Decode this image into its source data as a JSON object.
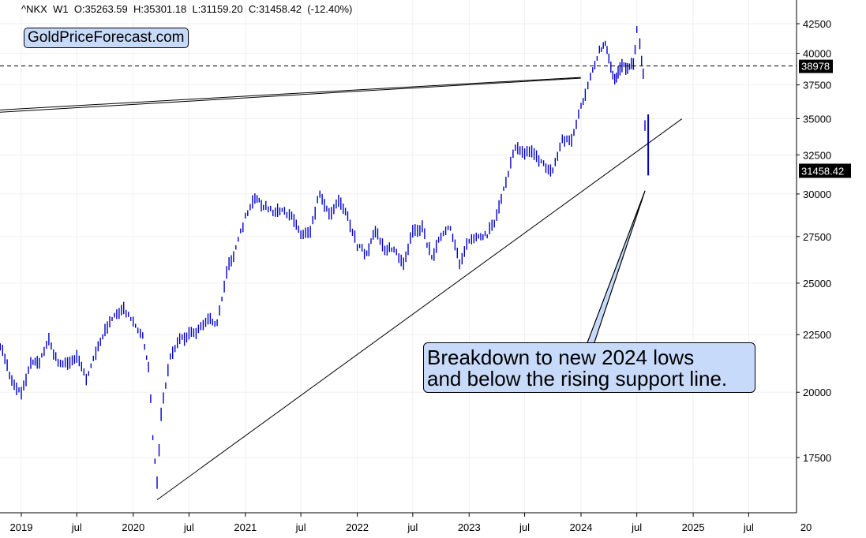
{
  "header": {
    "symbol": "^NKX",
    "interval": "W1",
    "open": "O:35263.59",
    "high": "H:35301.18",
    "low": "L:31159.20",
    "close": "C:31458.42",
    "change": "(-12.40%)"
  },
  "logo_text": "GoldPriceForecast.com",
  "callout": {
    "line1": "Breakdown to new 2024 lows",
    "line2": "and below the rising support line."
  },
  "colors": {
    "bars": "#0000cc",
    "callout_bg": "#c8daf9",
    "price_label_bg": "#000000",
    "price_label_text": "#ffffff"
  },
  "chart_data": {
    "type": "line",
    "title": "",
    "series": [
      {
        "x": [
          "2018-10-01",
          "2018-11-01",
          "2018-12-01",
          "2019-01-01",
          "2019-02-01",
          "2019-03-01",
          "2019-04-01",
          "2019-05-01",
          "2019-06-01",
          "2019-07-01",
          "2019-08-01",
          "2019-09-01",
          "2019-10-01",
          "2019-11-01",
          "2019-12-01",
          "2020-01-01",
          "2020-02-01",
          "2020-02-20",
          "2020-03-05",
          "2020-03-19",
          "2020-04-01",
          "2020-05-01",
          "2020-06-01",
          "2020-07-01",
          "2020-08-01",
          "2020-09-01",
          "2020-10-01",
          "2020-11-01",
          "2020-12-01",
          "2021-01-01",
          "2021-02-01",
          "2021-03-01",
          "2021-04-01",
          "2021-05-01",
          "2021-06-01",
          "2021-07-01",
          "2021-08-01",
          "2021-09-01",
          "2021-10-01",
          "2021-11-01",
          "2021-12-01",
          "2022-01-01",
          "2022-02-01",
          "2022-03-01",
          "2022-04-01",
          "2022-05-01",
          "2022-06-01",
          "2022-07-01",
          "2022-08-01",
          "2022-09-01",
          "2022-10-01",
          "2022-11-01",
          "2022-12-01",
          "2023-01-01",
          "2023-02-01",
          "2023-03-01",
          "2023-04-01",
          "2023-05-01",
          "2023-06-01",
          "2023-07-01",
          "2023-08-01",
          "2023-09-01",
          "2023-10-01",
          "2023-11-01",
          "2023-12-01",
          "2024-01-01",
          "2024-01-15",
          "2024-02-01",
          "2024-02-15",
          "2024-03-01",
          "2024-03-20",
          "2024-04-01",
          "2024-04-20",
          "2024-05-01",
          "2024-05-20",
          "2024-06-01",
          "2024-06-20",
          "2024-07-01",
          "2024-07-11",
          "2024-07-22",
          "2024-08-02"
        ],
        "values": [
          22600,
          21800,
          20400,
          20000,
          21200,
          21300,
          22200,
          21200,
          21200,
          21500,
          20600,
          21600,
          22800,
          23300,
          23700,
          23200,
          22400,
          21100,
          18300,
          16550,
          19200,
          21500,
          22300,
          22500,
          22700,
          23200,
          23000,
          25600,
          26800,
          28600,
          29800,
          29300,
          28900,
          28900,
          28800,
          27600,
          27900,
          30100,
          28700,
          29600,
          28600,
          27000,
          26500,
          27800,
          26800,
          26800,
          25900,
          27800,
          28000,
          26300,
          27500,
          28000,
          26100,
          27300,
          27400,
          27600,
          28600,
          30800,
          33100,
          32700,
          32600,
          31800,
          31500,
          33500,
          33500,
          35800,
          36800,
          38000,
          39000,
          40300,
          40700,
          39600,
          37800,
          38500,
          39000,
          38800,
          39200,
          41800,
          40800,
          38200,
          31458
        ]
      }
    ],
    "lines": [
      {
        "name": "support",
        "x": [
          "2020-03-19",
          "2024-11-25"
        ],
        "y": [
          16050,
          34980
        ]
      },
      {
        "name": "resistance",
        "x": [
          "2018-10-01",
          "2023-12-31"
        ],
        "y": [
          35600,
          38080
        ]
      }
    ],
    "horizontal_line": 38978,
    "last_price": 31458.42,
    "last_price_label": "31458.42",
    "horizontal_line_label": "38978",
    "ylim": [
      15500,
      43500
    ],
    "yscale": "log",
    "y_ticks": [
      17500,
      20000,
      22500,
      25000,
      27500,
      30000,
      32500,
      35000,
      37500,
      40000,
      42500
    ],
    "x_ticks": [
      {
        "date": "2019-01-01",
        "label": "2019"
      },
      {
        "date": "2019-07-01",
        "label": "jul"
      },
      {
        "date": "2020-01-01",
        "label": "2020"
      },
      {
        "date": "2020-07-01",
        "label": "jul"
      },
      {
        "date": "2021-01-01",
        "label": "2021"
      },
      {
        "date": "2021-07-01",
        "label": "jul"
      },
      {
        "date": "2022-01-01",
        "label": "2022"
      },
      {
        "date": "2022-07-01",
        "label": "jul"
      },
      {
        "date": "2023-01-01",
        "label": "2023"
      },
      {
        "date": "2023-07-01",
        "label": "jul"
      },
      {
        "date": "2024-01-01",
        "label": "2024"
      },
      {
        "date": "2024-07-01",
        "label": "jul"
      },
      {
        "date": "2025-01-01",
        "label": "2025"
      },
      {
        "date": "2025-07-01",
        "label": "jul"
      },
      {
        "date": "2026-01-01",
        "label": "20"
      }
    ]
  }
}
